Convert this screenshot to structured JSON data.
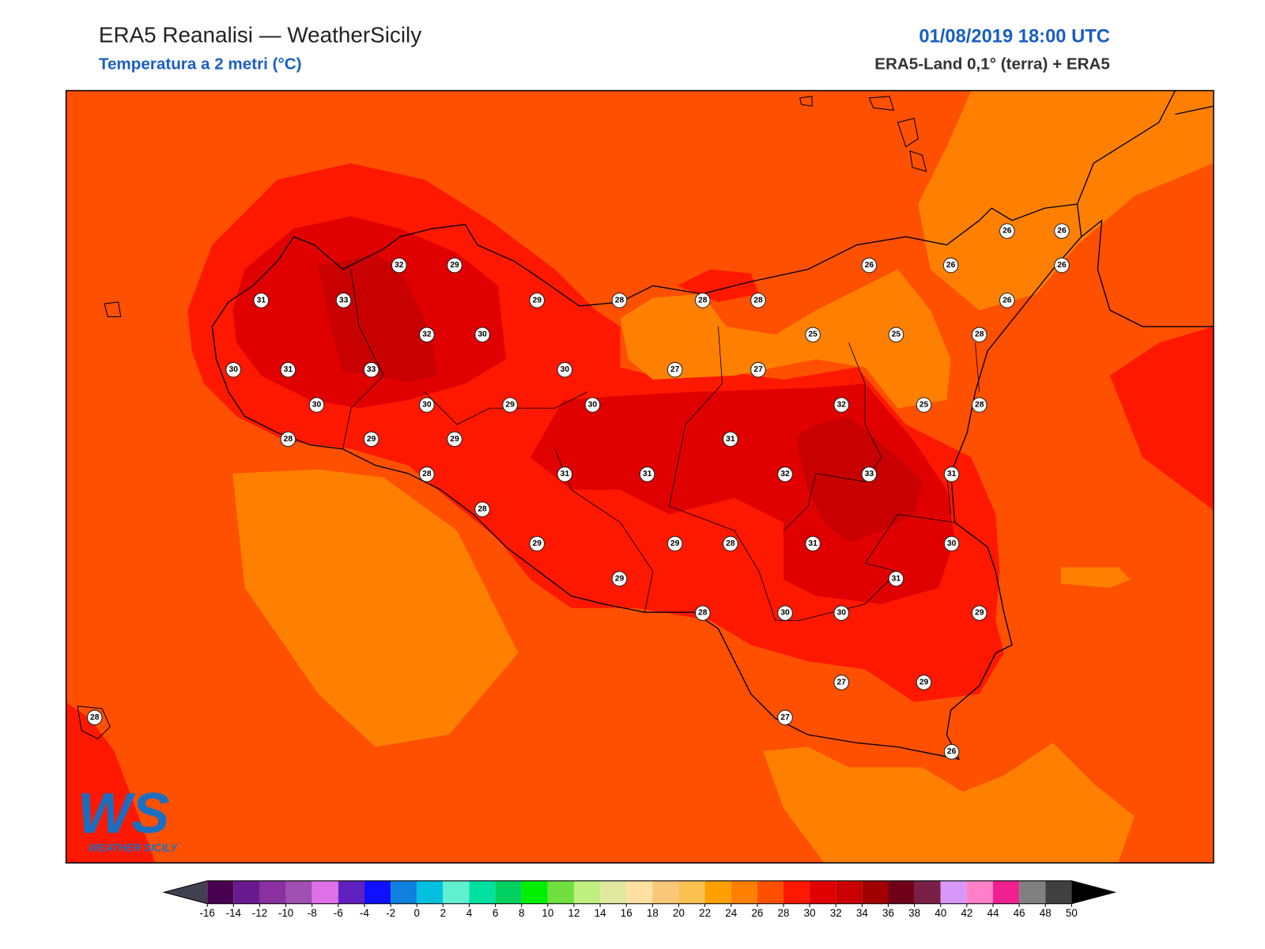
{
  "header": {
    "title": "ERA5 Reanalisi — WeatherSicily",
    "subtitle": "Temperatura a 2 metri (°C)",
    "datetime": "01/08/2019 18:00 UTC",
    "source": "ERA5-Land 0,1° (terra) + ERA5"
  },
  "logo": {
    "mark": "WS",
    "name": "WEATHER SICILY"
  },
  "stations": [
    26,
    26,
    26,
    26,
    26,
    32,
    29,
    31,
    33,
    29,
    28,
    28,
    28,
    26,
    25,
    25,
    28,
    32,
    30,
    30,
    31,
    33,
    30,
    27,
    27,
    30,
    30,
    29,
    30,
    32,
    25,
    28,
    28,
    29,
    29,
    31,
    28,
    31,
    31,
    32,
    33,
    31,
    28,
    29,
    29,
    28,
    31,
    30,
    31,
    29,
    28,
    30,
    30,
    29,
    27,
    29,
    27,
    26,
    28
  ],
  "colorbar": {
    "ticks": [
      -16,
      -14,
      -12,
      -10,
      -8,
      -6,
      -4,
      -2,
      0,
      2,
      4,
      6,
      8,
      10,
      12,
      14,
      16,
      18,
      20,
      22,
      24,
      26,
      28,
      30,
      32,
      34,
      36,
      38,
      40,
      42,
      44,
      46,
      48,
      50
    ],
    "colors": [
      "#4a0050",
      "#6a1a90",
      "#8a30a0",
      "#a050b0",
      "#e070e8",
      "#6020c0",
      "#1010ff",
      "#1080e0",
      "#00c0e0",
      "#60f0d0",
      "#00e0a0",
      "#00d060",
      "#00f000",
      "#70e040",
      "#c0f080",
      "#e0e8a0",
      "#ffe0a0",
      "#f8c878",
      "#fac050",
      "#ffa000",
      "#ff8000",
      "#ff5000",
      "#ff1800",
      "#e00000",
      "#c80000",
      "#a00000",
      "#700018",
      "#7a2048",
      "#d898f8",
      "#ff80c8",
      "#f02090",
      "#808080",
      "#404040"
    ],
    "under_color": "#404050",
    "over_color": "#000000"
  }
}
